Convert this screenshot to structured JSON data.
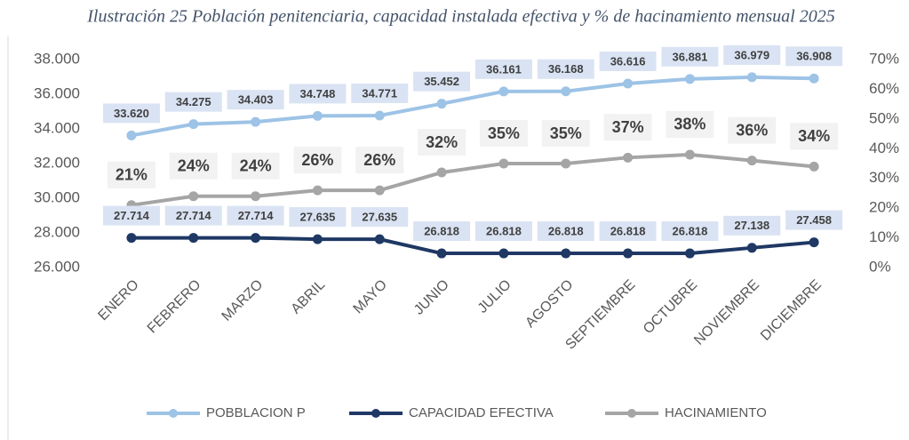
{
  "chart_data": {
    "type": "line",
    "title": "Ilustración 25 Población penitenciaria, capacidad instalada efectiva y % de hacinamiento mensual 2025",
    "categories": [
      "ENERO",
      "FEBRERO",
      "MARZO",
      "ABRIL",
      "MAYO",
      "JUNIO",
      "JULIO",
      "AGOSTO",
      "SEPTIEMBRE",
      "OCTUBRE",
      "NOVIEMBRE",
      "DICIEMBRE"
    ],
    "series": [
      {
        "name": "POBBLACION P",
        "color": "#9dc3e6",
        "values": [
          33620,
          34275,
          34403,
          34748,
          34771,
          35452,
          36161,
          36168,
          36616,
          36881,
          36979,
          36908
        ],
        "value_labels": [
          "33.620",
          "34.275",
          "34.403",
          "34.748",
          "34.771",
          "35.452",
          "36.161",
          "36.168",
          "36.616",
          "36.881",
          "36.979",
          "36.908"
        ]
      },
      {
        "name": "CAPACIDAD EFECTIVA",
        "color": "#1f3864",
        "values": [
          27714,
          27714,
          27714,
          27635,
          27635,
          26818,
          26818,
          26818,
          26818,
          26818,
          27138,
          27458
        ],
        "value_labels": [
          "27.714",
          "27.714",
          "27.714",
          "27.635",
          "27.635",
          "26.818",
          "26.818",
          "26.818",
          "26.818",
          "26.818",
          "27.138",
          "27.458"
        ]
      },
      {
        "name": "HACINAMIENTO",
        "color": "#a5a5a5",
        "axis": "y2",
        "values": [
          21,
          24,
          24,
          26,
          26,
          32,
          35,
          35,
          37,
          38,
          36,
          34
        ],
        "value_labels": [
          "21%",
          "24%",
          "24%",
          "26%",
          "26%",
          "32%",
          "35%",
          "35%",
          "37%",
          "38%",
          "36%",
          "34%"
        ]
      }
    ],
    "ylim": [
      26000,
      38000
    ],
    "yticks": [
      {
        "value": 26000,
        "label": "26.000"
      },
      {
        "value": 28000,
        "label": "28.000"
      },
      {
        "value": 30000,
        "label": "30.000"
      },
      {
        "value": 32000,
        "label": "32.000"
      },
      {
        "value": 34000,
        "label": "34.000"
      },
      {
        "value": 36000,
        "label": "36.000"
      },
      {
        "value": 38000,
        "label": "38.000"
      }
    ],
    "y2lim": [
      0,
      70
    ],
    "y2ticks": [
      {
        "value": 0,
        "label": "0%"
      },
      {
        "value": 10,
        "label": "10%"
      },
      {
        "value": 20,
        "label": "20%"
      },
      {
        "value": 30,
        "label": "30%"
      },
      {
        "value": 40,
        "label": "40%"
      },
      {
        "value": 50,
        "label": "50%"
      },
      {
        "value": 60,
        "label": "60%"
      },
      {
        "value": 70,
        "label": "70%"
      }
    ],
    "legend": "bottom"
  }
}
